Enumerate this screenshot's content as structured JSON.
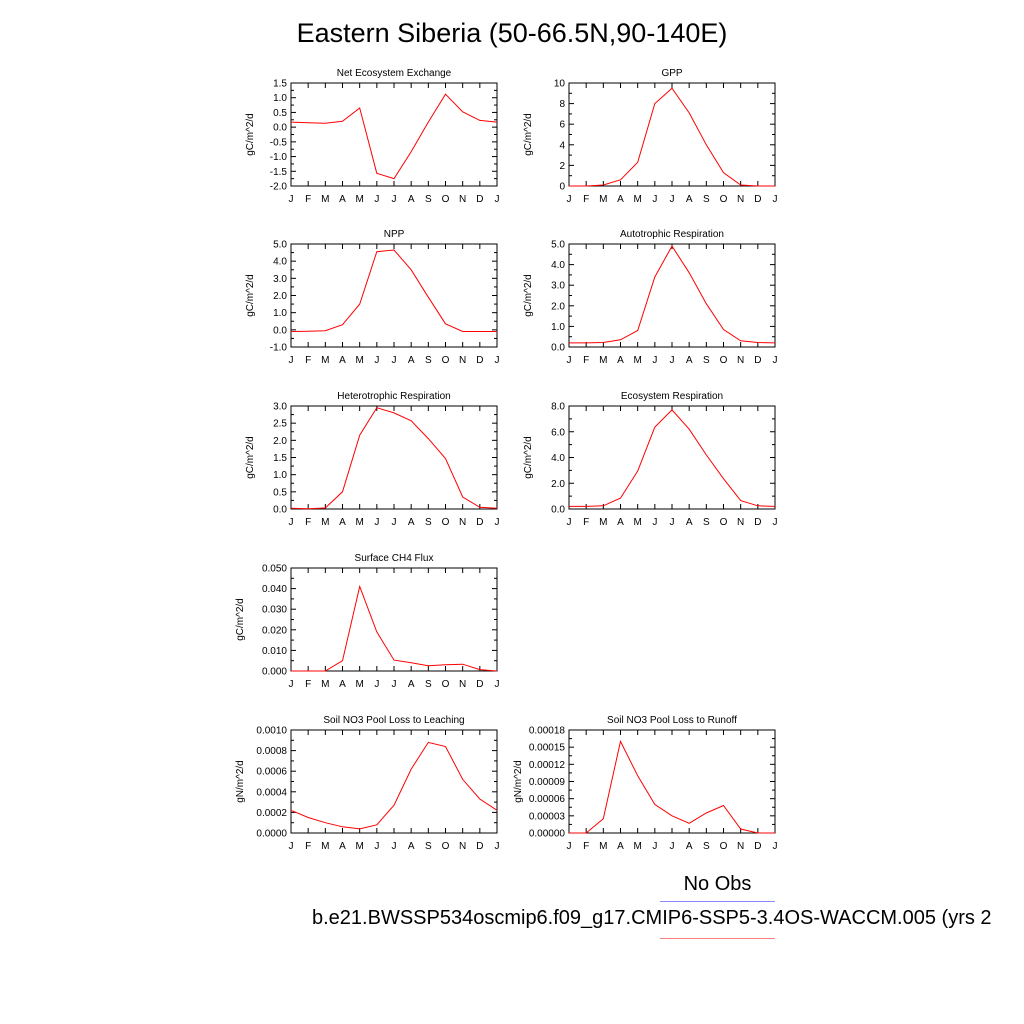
{
  "title": "Eastern Siberia (50-66.5N,90-140E)",
  "legend": {
    "obs_label": "No Obs",
    "obs_color": "#8888ff",
    "case_label": "b.e21.BWSSP534oscmip6.f09_g17.CMIP6-SSP5-3.4OS-WACCM.005 (yrs 2",
    "model_color": "#ff8080"
  },
  "line_color": "#ff0000",
  "chart_data": [
    {
      "type": "line",
      "title": "Net Ecosystem Exchange",
      "ylabel": "gC/m^2/d",
      "xlabel": "",
      "categories": [
        "J",
        "F",
        "M",
        "A",
        "M",
        "J",
        "J",
        "A",
        "S",
        "O",
        "N",
        "D",
        "J"
      ],
      "ylim": [
        -2.0,
        1.5
      ],
      "yticks": [
        "1.5",
        "1.0",
        "0.5",
        "0.0",
        "-0.5",
        "-1.0",
        "-1.5",
        "-2.0"
      ],
      "ytick_values": [
        1.5,
        1.0,
        0.5,
        0.0,
        -0.5,
        -1.0,
        -1.5,
        -2.0
      ],
      "values": [
        0.17,
        0.15,
        0.13,
        0.2,
        0.65,
        -1.57,
        -1.75,
        -0.83,
        0.17,
        1.12,
        0.52,
        0.23,
        0.17
      ]
    },
    {
      "type": "line",
      "title": "GPP",
      "ylabel": "gC/m^2/d",
      "xlabel": "",
      "categories": [
        "J",
        "F",
        "M",
        "A",
        "M",
        "J",
        "J",
        "A",
        "S",
        "O",
        "N",
        "D",
        "J"
      ],
      "ylim": [
        0,
        10
      ],
      "yticks": [
        "10",
        "8",
        "6",
        "4",
        "2",
        "0"
      ],
      "ytick_values": [
        10,
        8,
        6,
        4,
        2,
        0
      ],
      "values": [
        0.0,
        0.0,
        0.1,
        0.6,
        2.3,
        8.0,
        9.5,
        7.1,
        4.0,
        1.3,
        0.1,
        0.0,
        0.0
      ]
    },
    {
      "type": "line",
      "title": "NPP",
      "ylabel": "gC/m^2/d",
      "xlabel": "",
      "categories": [
        "J",
        "F",
        "M",
        "A",
        "M",
        "J",
        "J",
        "A",
        "S",
        "O",
        "N",
        "D",
        "J"
      ],
      "ylim": [
        -1.0,
        5.0
      ],
      "yticks": [
        "5.0",
        "4.0",
        "3.0",
        "2.0",
        "1.0",
        "0.0",
        "-1.0"
      ],
      "ytick_values": [
        5.0,
        4.0,
        3.0,
        2.0,
        1.0,
        0.0,
        -1.0
      ],
      "values": [
        -0.1,
        -0.08,
        -0.05,
        0.3,
        1.5,
        4.55,
        4.65,
        3.5,
        1.9,
        0.35,
        -0.1,
        -0.1,
        -0.1
      ]
    },
    {
      "type": "line",
      "title": "Autotrophic Respiration",
      "ylabel": "gC/m^2/d",
      "xlabel": "",
      "categories": [
        "J",
        "F",
        "M",
        "A",
        "M",
        "J",
        "J",
        "A",
        "S",
        "O",
        "N",
        "D",
        "J"
      ],
      "ylim": [
        0.0,
        5.0
      ],
      "yticks": [
        "5.0",
        "4.0",
        "3.0",
        "2.0",
        "1.0",
        "0.0"
      ],
      "ytick_values": [
        5.0,
        4.0,
        3.0,
        2.0,
        1.0,
        0.0
      ],
      "values": [
        0.2,
        0.2,
        0.22,
        0.35,
        0.8,
        3.4,
        4.9,
        3.6,
        2.1,
        0.85,
        0.3,
        0.22,
        0.2
      ]
    },
    {
      "type": "line",
      "title": "Heterotrophic Respiration",
      "ylabel": "gC/m^2/d",
      "xlabel": "",
      "categories": [
        "J",
        "F",
        "M",
        "A",
        "M",
        "J",
        "J",
        "A",
        "S",
        "O",
        "N",
        "D",
        "J"
      ],
      "ylim": [
        0.0,
        3.0
      ],
      "yticks": [
        "3.0",
        "2.5",
        "2.0",
        "1.5",
        "1.0",
        "0.5",
        "0.0"
      ],
      "ytick_values": [
        3.0,
        2.5,
        2.0,
        1.5,
        1.0,
        0.5,
        0.0
      ],
      "values": [
        0.02,
        0.01,
        0.03,
        0.5,
        2.15,
        2.95,
        2.8,
        2.57,
        2.05,
        1.47,
        0.35,
        0.05,
        0.02
      ]
    },
    {
      "type": "line",
      "title": "Ecosystem Respiration",
      "ylabel": "gC/m^2/d",
      "xlabel": "",
      "categories": [
        "J",
        "F",
        "M",
        "A",
        "M",
        "J",
        "J",
        "A",
        "S",
        "O",
        "N",
        "D",
        "J"
      ],
      "ylim": [
        0.0,
        8.0
      ],
      "yticks": [
        "8.0",
        "6.0",
        "4.0",
        "2.0",
        "0.0"
      ],
      "ytick_values": [
        8.0,
        6.0,
        4.0,
        2.0,
        0.0
      ],
      "values": [
        0.2,
        0.2,
        0.25,
        0.85,
        2.95,
        6.35,
        7.7,
        6.2,
        4.2,
        2.35,
        0.65,
        0.25,
        0.2
      ]
    },
    {
      "type": "line",
      "title": "Surface CH4 Flux",
      "ylabel": "gC/m^2/d",
      "xlabel": "",
      "categories": [
        "J",
        "F",
        "M",
        "A",
        "M",
        "J",
        "J",
        "A",
        "S",
        "O",
        "N",
        "D",
        "J"
      ],
      "ylim": [
        0.0,
        0.05
      ],
      "yticks": [
        "0.050",
        "0.040",
        "0.030",
        "0.020",
        "0.010",
        "0.000"
      ],
      "ytick_values": [
        0.05,
        0.04,
        0.03,
        0.02,
        0.01,
        0.0
      ],
      "values": [
        0.0,
        0.0,
        0.0,
        0.005,
        0.041,
        0.019,
        0.0053,
        0.004,
        0.0025,
        0.003,
        0.0033,
        0.0007,
        0.0
      ]
    },
    {
      "type": "line",
      "title": "Soil NO3 Pool Loss to Leaching",
      "ylabel": "gN/m^2/d",
      "xlabel": "",
      "categories": [
        "J",
        "F",
        "M",
        "A",
        "M",
        "J",
        "J",
        "A",
        "S",
        "O",
        "N",
        "D",
        "J"
      ],
      "ylim": [
        0.0,
        0.001
      ],
      "yticks": [
        "0.0010",
        "0.0008",
        "0.0006",
        "0.0004",
        "0.0002",
        "0.0000"
      ],
      "ytick_values": [
        0.001,
        0.0008,
        0.0006,
        0.0004,
        0.0002,
        0.0
      ],
      "values": [
        0.00022,
        0.00015,
        0.0001,
        6e-05,
        4e-05,
        8e-05,
        0.00027,
        0.00062,
        0.00088,
        0.00084,
        0.00052,
        0.00033,
        0.00022
      ]
    },
    {
      "type": "line",
      "title": "Soil NO3 Pool Loss to Runoff",
      "ylabel": "gN/m^2/d",
      "xlabel": "",
      "categories": [
        "J",
        "F",
        "M",
        "A",
        "M",
        "J",
        "J",
        "A",
        "S",
        "O",
        "N",
        "D",
        "J"
      ],
      "ylim": [
        0.0,
        0.00018
      ],
      "yticks": [
        "0.00018",
        "0.00015",
        "0.00012",
        "0.00009",
        "0.00006",
        "0.00003",
        "0.00000"
      ],
      "ytick_values": [
        0.00018,
        0.00015,
        0.00012,
        9e-05,
        6e-05,
        3e-05,
        0.0
      ],
      "values": [
        0.0,
        0.0,
        2.5e-05,
        0.00016,
        0.0001,
        5e-05,
        3e-05,
        1.7e-05,
        3.5e-05,
        4.8e-05,
        7e-06,
        0.0,
        0.0
      ]
    }
  ]
}
